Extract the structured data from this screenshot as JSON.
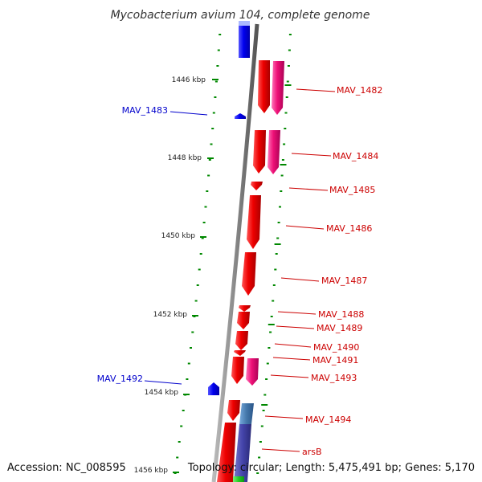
{
  "title": "Mycobacterium avium 104, complete genome",
  "footer": {
    "accession": "Accession: NC_008595",
    "topology": "Topology: circular; Length: 5,475,491 bp; Genes: 5,170"
  },
  "colors": {
    "forward_gene": "#0000ee",
    "reverse_gene": "#ee0000",
    "pink_feature": "#ee1177",
    "steel_feature": "#4477aa",
    "indigo_feature": "#4444aa",
    "green_feature": "#22cc22",
    "backbone": "#888888",
    "tick": "#008800",
    "forward_label": "#0000cc",
    "reverse_label": "#cc0000"
  },
  "scale_labels": [
    {
      "kbp": 1446,
      "text": "1446 kbp"
    },
    {
      "kbp": 1448,
      "text": "1448 kbp"
    },
    {
      "kbp": 1450,
      "text": "1450 kbp"
    },
    {
      "kbp": 1452,
      "text": "1452 kbp"
    },
    {
      "kbp": 1454,
      "text": "1454 kbp"
    },
    {
      "kbp": 1456,
      "text": "1456 kbp"
    }
  ],
  "gene_labels": [
    {
      "name": "MAV_1482",
      "strand": "reverse"
    },
    {
      "name": "MAV_1483",
      "strand": "forward"
    },
    {
      "name": "MAV_1484",
      "strand": "reverse"
    },
    {
      "name": "MAV_1485",
      "strand": "reverse"
    },
    {
      "name": "MAV_1486",
      "strand": "reverse"
    },
    {
      "name": "MAV_1487",
      "strand": "reverse"
    },
    {
      "name": "MAV_1488",
      "strand": "reverse"
    },
    {
      "name": "MAV_1489",
      "strand": "reverse"
    },
    {
      "name": "MAV_1490",
      "strand": "reverse"
    },
    {
      "name": "MAV_1491",
      "strand": "reverse"
    },
    {
      "name": "MAV_1492",
      "strand": "forward"
    },
    {
      "name": "MAV_1493",
      "strand": "reverse"
    },
    {
      "name": "MAV_1494",
      "strand": "reverse"
    },
    {
      "name": "arsB",
      "strand": "reverse"
    }
  ]
}
